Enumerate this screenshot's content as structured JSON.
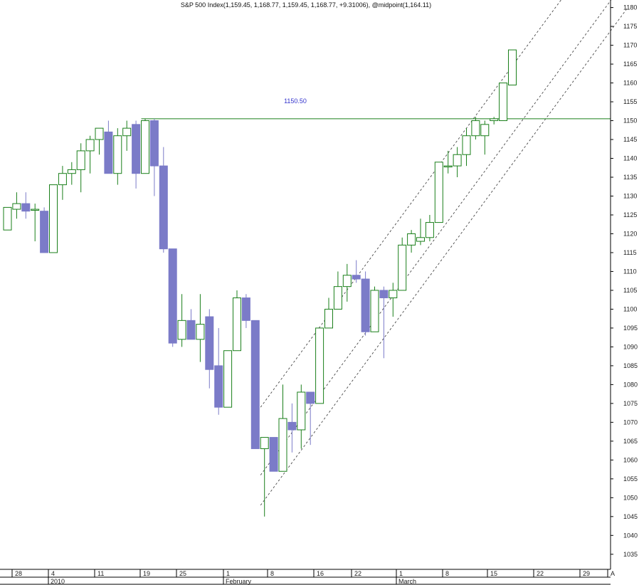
{
  "chart_data": {
    "type": "candlestick",
    "title": "S&P 500 Index(1,159.45, 1,168.77, 1,159.45, 1,168.77, +9.31006), @midpoint(1,164.11)",
    "ylim": [
      1031,
      1182
    ],
    "y_ticks": [
      1035,
      1040,
      1045,
      1050,
      1055,
      1060,
      1065,
      1070,
      1075,
      1080,
      1085,
      1090,
      1095,
      1100,
      1105,
      1110,
      1115,
      1120,
      1125,
      1130,
      1135,
      1140,
      1145,
      1150,
      1155,
      1160,
      1165,
      1170,
      1175,
      1180
    ],
    "x_ticks": [
      {
        "label": "28",
        "row": "day"
      },
      {
        "label": "4",
        "row": "day"
      },
      {
        "label": "11",
        "row": "day"
      },
      {
        "label": "19",
        "row": "day"
      },
      {
        "label": "25",
        "row": "day"
      },
      {
        "label": "1",
        "row": "day"
      },
      {
        "label": "8",
        "row": "day"
      },
      {
        "label": "16",
        "row": "day"
      },
      {
        "label": "22",
        "row": "day"
      },
      {
        "label": "1",
        "row": "day"
      },
      {
        "label": "8",
        "row": "day"
      },
      {
        "label": "15",
        "row": "day"
      },
      {
        "label": "22",
        "row": "day"
      },
      {
        "label": "29",
        "row": "day"
      },
      {
        "label": "A",
        "row": "day"
      }
    ],
    "months": [
      "2010",
      "February",
      "March"
    ],
    "candles": [
      {
        "o": 1121,
        "h": 1127,
        "l": 1121,
        "c": 1127
      },
      {
        "o": 1126.5,
        "h": 1131,
        "l": 1124,
        "c": 1128
      },
      {
        "o": 1128,
        "h": 1131,
        "l": 1124,
        "c": 1126
      },
      {
        "o": 1126.5,
        "h": 1128,
        "l": 1118,
        "c": 1126.5
      },
      {
        "o": 1126,
        "h": 1127,
        "l": 1115,
        "c": 1115
      },
      {
        "o": 1115,
        "h": 1133,
        "l": 1115,
        "c": 1133
      },
      {
        "o": 1133,
        "h": 1138,
        "l": 1129,
        "c": 1136
      },
      {
        "o": 1136,
        "h": 1139,
        "l": 1133,
        "c": 1137
      },
      {
        "o": 1137,
        "h": 1144,
        "l": 1131,
        "c": 1142
      },
      {
        "o": 1142,
        "h": 1146,
        "l": 1136,
        "c": 1145
      },
      {
        "o": 1145,
        "h": 1148,
        "l": 1141,
        "c": 1148
      },
      {
        "o": 1147,
        "h": 1150,
        "l": 1136,
        "c": 1136
      },
      {
        "o": 1136,
        "h": 1148,
        "l": 1133,
        "c": 1146
      },
      {
        "o": 1146,
        "h": 1150,
        "l": 1142,
        "c": 1148
      },
      {
        "o": 1149,
        "h": 1150,
        "l": 1132,
        "c": 1136
      },
      {
        "o": 1136,
        "h": 1150.5,
        "l": 1136,
        "c": 1150
      },
      {
        "o": 1150,
        "h": 1150.5,
        "l": 1130,
        "c": 1138
      },
      {
        "o": 1138,
        "h": 1143,
        "l": 1115,
        "c": 1116
      },
      {
        "o": 1116,
        "h": 1116,
        "l": 1090,
        "c": 1091
      },
      {
        "o": 1092,
        "h": 1104,
        "l": 1090,
        "c": 1097
      },
      {
        "o": 1097,
        "h": 1100,
        "l": 1092,
        "c": 1092
      },
      {
        "o": 1092,
        "h": 1104,
        "l": 1086,
        "c": 1096
      },
      {
        "o": 1098,
        "h": 1100,
        "l": 1079,
        "c": 1084
      },
      {
        "o": 1085,
        "h": 1095,
        "l": 1072,
        "c": 1074
      },
      {
        "o": 1074,
        "h": 1089,
        "l": 1074,
        "c": 1089
      },
      {
        "o": 1089,
        "h": 1105,
        "l": 1089,
        "c": 1103
      },
      {
        "o": 1103,
        "h": 1104,
        "l": 1095,
        "c": 1097
      },
      {
        "o": 1097,
        "h": 1097,
        "l": 1063,
        "c": 1063
      },
      {
        "o": 1063,
        "h": 1066,
        "l": 1045,
        "c": 1066
      },
      {
        "o": 1066,
        "h": 1066,
        "l": 1057,
        "c": 1057
      },
      {
        "o": 1057,
        "h": 1080,
        "l": 1057,
        "c": 1071
      },
      {
        "o": 1070,
        "h": 1075,
        "l": 1062,
        "c": 1068
      },
      {
        "o": 1068,
        "h": 1080,
        "l": 1063,
        "c": 1078
      },
      {
        "o": 1078,
        "h": 1078,
        "l": 1064,
        "c": 1075
      },
      {
        "o": 1075,
        "h": 1095,
        "l": 1075,
        "c": 1095
      },
      {
        "o": 1095,
        "h": 1103,
        "l": 1095,
        "c": 1100
      },
      {
        "o": 1100,
        "h": 1110,
        "l": 1100,
        "c": 1106
      },
      {
        "o": 1106,
        "h": 1112,
        "l": 1102,
        "c": 1109
      },
      {
        "o": 1109,
        "h": 1113,
        "l": 1107,
        "c": 1108
      },
      {
        "o": 1108,
        "h": 1110,
        "l": 1093,
        "c": 1094
      },
      {
        "o": 1094,
        "h": 1106,
        "l": 1094,
        "c": 1105
      },
      {
        "o": 1105,
        "h": 1106,
        "l": 1087,
        "c": 1103
      },
      {
        "o": 1103,
        "h": 1107,
        "l": 1098,
        "c": 1105
      },
      {
        "o": 1105,
        "h": 1119,
        "l": 1105,
        "c": 1117
      },
      {
        "o": 1117,
        "h": 1121,
        "l": 1115,
        "c": 1120
      },
      {
        "o": 1118,
        "h": 1124,
        "l": 1117,
        "c": 1119
      },
      {
        "o": 1119,
        "h": 1125,
        "l": 1118,
        "c": 1123
      },
      {
        "o": 1123,
        "h": 1139,
        "l": 1123,
        "c": 1139
      },
      {
        "o": 1138,
        "h": 1142,
        "l": 1136,
        "c": 1138
      },
      {
        "o": 1138,
        "h": 1143,
        "l": 1135,
        "c": 1141
      },
      {
        "o": 1141,
        "h": 1148,
        "l": 1138,
        "c": 1146
      },
      {
        "o": 1146,
        "h": 1151,
        "l": 1145,
        "c": 1150
      },
      {
        "o": 1146,
        "h": 1150,
        "l": 1141,
        "c": 1149
      },
      {
        "o": 1150,
        "h": 1151,
        "l": 1149,
        "c": 1150.5
      },
      {
        "o": 1150,
        "h": 1160,
        "l": 1150,
        "c": 1160
      },
      {
        "o": 1159.45,
        "h": 1168.77,
        "l": 1159.45,
        "c": 1168.77
      }
    ],
    "level_line": {
      "value": 1150.5,
      "label": "1150.50"
    },
    "channel": [
      {
        "name": "upper",
        "start": {
          "i": 28,
          "v": 1074
        },
        "slope": 3.3
      },
      {
        "name": "middle",
        "start": {
          "i": 28,
          "v": 1056
        },
        "slope": 3.3
      },
      {
        "name": "lower",
        "start": {
          "i": 28,
          "v": 1048
        },
        "slope": 3.3
      }
    ],
    "colors": {
      "up_candle": "#1a7f1a",
      "down_candle": "#7b7bc8",
      "level_line": "#1a7f1a",
      "channel": "#333333",
      "level_label": "#3333cc"
    }
  }
}
